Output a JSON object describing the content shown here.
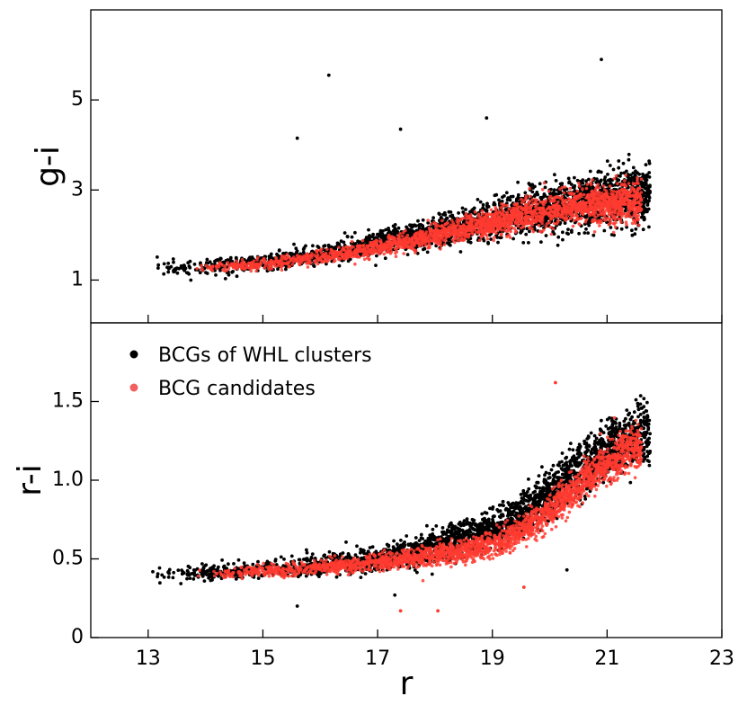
{
  "chart_data": [
    {
      "panel": "top",
      "type": "scatter",
      "title": "",
      "xlabel": "",
      "ylabel": "g-i",
      "xlim": [
        12,
        23
      ],
      "ylim": [
        0.05,
        7.0
      ],
      "xticks": [
        13,
        15,
        17,
        19,
        21,
        23
      ],
      "yticks": [
        1,
        3,
        5
      ],
      "ytick_labels": [
        "1",
        "3",
        "5"
      ],
      "grid": false,
      "series": [
        {
          "name": "BCGs of WHL clusters",
          "color": "#000000",
          "trend": [
            [
              13.0,
              1.28
            ],
            [
              14.0,
              1.3
            ],
            [
              15.0,
              1.38
            ],
            [
              16.0,
              1.55
            ],
            [
              17.0,
              1.8
            ],
            [
              18.0,
              2.05
            ],
            [
              19.0,
              2.35
            ],
            [
              20.0,
              2.6
            ],
            [
              21.0,
              2.8
            ],
            [
              21.7,
              2.9
            ]
          ],
          "x_range": [
            13.0,
            21.75
          ],
          "outliers": [
            [
              16.15,
              5.55
            ],
            [
              15.6,
              4.15
            ],
            [
              17.4,
              4.35
            ],
            [
              18.9,
              4.6
            ],
            [
              20.9,
              5.9
            ]
          ]
        },
        {
          "name": "BCG candidates",
          "color": "#ff3b30",
          "trend": [
            [
              13.8,
              1.28
            ],
            [
              14.5,
              1.3
            ],
            [
              15.5,
              1.42
            ],
            [
              16.5,
              1.6
            ],
            [
              17.5,
              1.85
            ],
            [
              18.5,
              2.12
            ],
            [
              19.5,
              2.42
            ],
            [
              20.5,
              2.65
            ],
            [
              21.4,
              2.75
            ]
          ],
          "x_range": [
            13.8,
            21.6
          ]
        }
      ]
    },
    {
      "panel": "bottom",
      "type": "scatter",
      "title": "",
      "xlabel": "r",
      "ylabel": "r-i",
      "xlim": [
        12,
        23
      ],
      "ylim": [
        0,
        2.0
      ],
      "xticks": [
        13,
        15,
        17,
        19,
        21,
        23
      ],
      "xtick_labels": [
        "13",
        "15",
        "17",
        "19",
        "21",
        "23"
      ],
      "yticks": [
        0,
        0.5,
        1.0,
        1.5
      ],
      "ytick_labels": [
        "0",
        "0.5",
        "1.0",
        "1.5"
      ],
      "grid": false,
      "legend": {
        "placement": "upper-left",
        "entries": [
          {
            "label": "BCGs of WHL clusters",
            "color": "#000000"
          },
          {
            "label": "BCG candidates",
            "color": "#f06060"
          }
        ]
      },
      "series": [
        {
          "name": "BCGs of WHL clusters",
          "color": "#000000",
          "trend": [
            [
              13.0,
              0.4
            ],
            [
              14.0,
              0.41
            ],
            [
              15.0,
              0.43
            ],
            [
              16.0,
              0.46
            ],
            [
              17.0,
              0.5
            ],
            [
              18.0,
              0.57
            ],
            [
              19.0,
              0.68
            ],
            [
              19.5,
              0.78
            ],
            [
              20.0,
              0.92
            ],
            [
              20.5,
              1.07
            ],
            [
              21.0,
              1.2
            ],
            [
              21.7,
              1.3
            ]
          ],
          "x_range": [
            13.0,
            21.75
          ],
          "outliers": [
            [
              15.6,
              0.2
            ],
            [
              17.3,
              0.27
            ],
            [
              20.3,
              0.43
            ]
          ]
        },
        {
          "name": "BCG candidates",
          "color": "#ff3b30",
          "trend": [
            [
              13.8,
              0.4
            ],
            [
              14.5,
              0.41
            ],
            [
              15.5,
              0.43
            ],
            [
              16.5,
              0.46
            ],
            [
              17.5,
              0.5
            ],
            [
              18.5,
              0.55
            ],
            [
              19.3,
              0.63
            ],
            [
              19.8,
              0.75
            ],
            [
              20.3,
              0.9
            ],
            [
              20.8,
              1.05
            ],
            [
              21.4,
              1.2
            ]
          ],
          "x_range": [
            13.8,
            21.6
          ],
          "outliers": [
            [
              17.4,
              0.17
            ],
            [
              18.05,
              0.17
            ],
            [
              19.55,
              0.32
            ],
            [
              20.1,
              1.62
            ]
          ]
        }
      ]
    }
  ]
}
